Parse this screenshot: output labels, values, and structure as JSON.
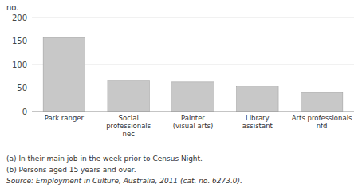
{
  "chart_data": {
    "type": "bar",
    "categories": [
      "Park ranger",
      "Social\nprofessionals\nnec",
      "Painter\n(visual arts)",
      "Library\nassistant",
      "Arts professionals\nnfd"
    ],
    "values": [
      157,
      65,
      63,
      53,
      40
    ],
    "color": "#c8c8c8",
    "ylim": [
      0,
      200
    ],
    "yticks": [
      0,
      50,
      100,
      150,
      200
    ],
    "y_label": "no.",
    "grid": true,
    "annotations": [
      "(a) In their main job in the week prior to Census Night.",
      "(b) Persons aged 15 years and over.",
      "Source: Employment in Culture, Australia, 2011 (cat. no. 6273.0)."
    ]
  }
}
